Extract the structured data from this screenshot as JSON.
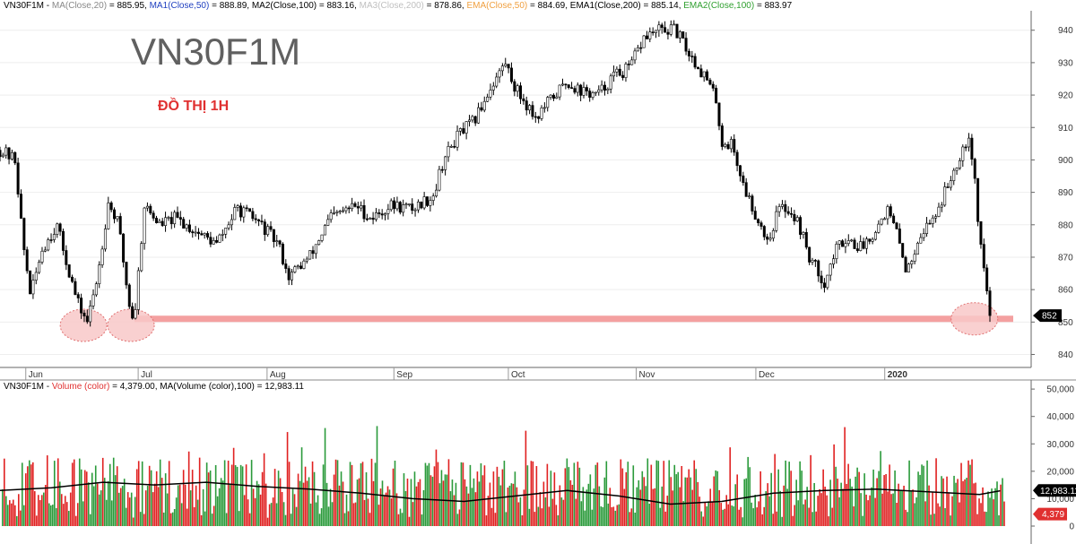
{
  "chart_title": "VN30F1M",
  "chart_subtitle": "ĐỒ THỊ 1H",
  "legend": {
    "price": [
      {
        "text": "VN30F1M - ",
        "color": "#000000"
      },
      {
        "text": "MA(Close,20)",
        "color": "#888888"
      },
      {
        "text": " = 885.95, ",
        "color": "#000000"
      },
      {
        "text": "MA1(Close,50)",
        "color": "#2040c0"
      },
      {
        "text": " = 888.89, MA2(Close,100) = 883.16, ",
        "color": "#000000"
      },
      {
        "text": "MA3(Close,200)",
        "color": "#c0c0c0"
      },
      {
        "text": " = 878.86, ",
        "color": "#000000"
      },
      {
        "text": "EMA(Close,50)",
        "color": "#f0a040"
      },
      {
        "text": " = 884.69, EMA1(Close,200) = 885.14, ",
        "color": "#000000"
      },
      {
        "text": "EMA2(Close,100)",
        "color": "#30a030"
      },
      {
        "text": " = 883.97",
        "color": "#000000"
      }
    ],
    "volume": [
      {
        "text": "VN30F1M - ",
        "color": "#000000"
      },
      {
        "text": "Volume (color)",
        "color": "#e03030"
      },
      {
        "text": " = 4,379.00, MA(Volume (color),100) = 12,983.11",
        "color": "#000000"
      }
    ]
  },
  "colors": {
    "candle": "#000000",
    "support_line": "#f4a0a0",
    "circle_fill": "#f8c8c8",
    "circle_stroke": "#e07070",
    "volume_up": "#2a9a3a",
    "volume_down": "#e02020",
    "volume_ma": "#000000",
    "badge_dark": "#000000",
    "badge_red": "#e03030"
  },
  "chart_data": [
    {
      "type": "candlestick",
      "name": "VN30F1M",
      "ylim": [
        836,
        946
      ],
      "y_ticks": [
        "940",
        "930",
        "920",
        "910",
        "900",
        "890",
        "880",
        "870",
        "860",
        "850",
        "840"
      ],
      "x_labels": [
        "Jun",
        "Jul",
        "Aug",
        "Sep",
        "Oct",
        "Nov",
        "Dec",
        "2020"
      ],
      "x_label_positions": [
        0.025,
        0.134,
        0.259,
        0.382,
        0.493,
        0.617,
        0.733,
        0.858
      ],
      "path_points": [
        [
          0,
          903
        ],
        [
          0.015,
          900
        ],
        [
          0.022,
          875
        ],
        [
          0.03,
          858
        ],
        [
          0.04,
          872
        ],
        [
          0.055,
          880
        ],
        [
          0.065,
          868
        ],
        [
          0.075,
          856
        ],
        [
          0.085,
          850
        ],
        [
          0.095,
          865
        ],
        [
          0.105,
          887
        ],
        [
          0.115,
          880
        ],
        [
          0.125,
          856
        ],
        [
          0.13,
          850
        ],
        [
          0.14,
          886
        ],
        [
          0.155,
          880
        ],
        [
          0.17,
          882
        ],
        [
          0.19,
          878
        ],
        [
          0.21,
          874
        ],
        [
          0.23,
          885
        ],
        [
          0.25,
          881
        ],
        [
          0.27,
          874
        ],
        [
          0.28,
          864
        ],
        [
          0.3,
          870
        ],
        [
          0.32,
          882
        ],
        [
          0.345,
          886
        ],
        [
          0.36,
          882
        ],
        [
          0.38,
          886
        ],
        [
          0.4,
          885
        ],
        [
          0.42,
          889
        ],
        [
          0.43,
          900
        ],
        [
          0.445,
          908
        ],
        [
          0.46,
          912
        ],
        [
          0.475,
          922
        ],
        [
          0.49,
          930
        ],
        [
          0.5,
          922
        ],
        [
          0.52,
          913
        ],
        [
          0.535,
          919
        ],
        [
          0.55,
          924
        ],
        [
          0.565,
          921
        ],
        [
          0.58,
          920
        ],
        [
          0.595,
          926
        ],
        [
          0.61,
          928
        ],
        [
          0.625,
          938
        ],
        [
          0.64,
          940
        ],
        [
          0.655,
          940
        ],
        [
          0.67,
          932
        ],
        [
          0.685,
          925
        ],
        [
          0.695,
          918
        ],
        [
          0.7,
          905
        ],
        [
          0.71,
          905
        ],
        [
          0.72,
          893
        ],
        [
          0.73,
          885
        ],
        [
          0.745,
          875
        ],
        [
          0.755,
          885
        ],
        [
          0.765,
          885
        ],
        [
          0.775,
          880
        ],
        [
          0.785,
          870
        ],
        [
          0.8,
          862
        ],
        [
          0.81,
          872
        ],
        [
          0.82,
          876
        ],
        [
          0.835,
          873
        ],
        [
          0.85,
          879
        ],
        [
          0.86,
          885
        ],
        [
          0.87,
          877
        ],
        [
          0.88,
          865
        ],
        [
          0.89,
          876
        ],
        [
          0.9,
          880
        ],
        [
          0.91,
          885
        ],
        [
          0.925,
          897
        ],
        [
          0.935,
          905
        ],
        [
          0.94,
          908
        ],
        [
          0.945,
          895
        ],
        [
          0.95,
          876
        ],
        [
          0.955,
          865
        ],
        [
          0.96,
          852
        ]
      ],
      "last_price_label": "852",
      "support_level": 851,
      "highlight_points": [
        [
          0.081,
          849
        ],
        [
          0.127,
          849
        ],
        [
          0.945,
          851
        ]
      ]
    },
    {
      "type": "bar",
      "name": "Volume",
      "ylim": [
        0,
        52000
      ],
      "y_ticks": [
        "50,000",
        "40,000",
        "30,000",
        "20,000",
        "10,000",
        "0"
      ],
      "current_volume_label": "4,379",
      "ma_label": "12,983.11",
      "ma_profile": [
        [
          0,
          13000
        ],
        [
          0.05,
          14000
        ],
        [
          0.1,
          16000
        ],
        [
          0.15,
          15000
        ],
        [
          0.2,
          16000
        ],
        [
          0.25,
          14500
        ],
        [
          0.3,
          13500
        ],
        [
          0.35,
          12000
        ],
        [
          0.4,
          10000
        ],
        [
          0.45,
          9000
        ],
        [
          0.5,
          11000
        ],
        [
          0.55,
          13000
        ],
        [
          0.6,
          11000
        ],
        [
          0.65,
          8000
        ],
        [
          0.7,
          9000
        ],
        [
          0.75,
          12000
        ],
        [
          0.8,
          13000
        ],
        [
          0.85,
          13500
        ],
        [
          0.9,
          12500
        ],
        [
          0.95,
          11500
        ],
        [
          0.97,
          12900
        ]
      ]
    }
  ]
}
